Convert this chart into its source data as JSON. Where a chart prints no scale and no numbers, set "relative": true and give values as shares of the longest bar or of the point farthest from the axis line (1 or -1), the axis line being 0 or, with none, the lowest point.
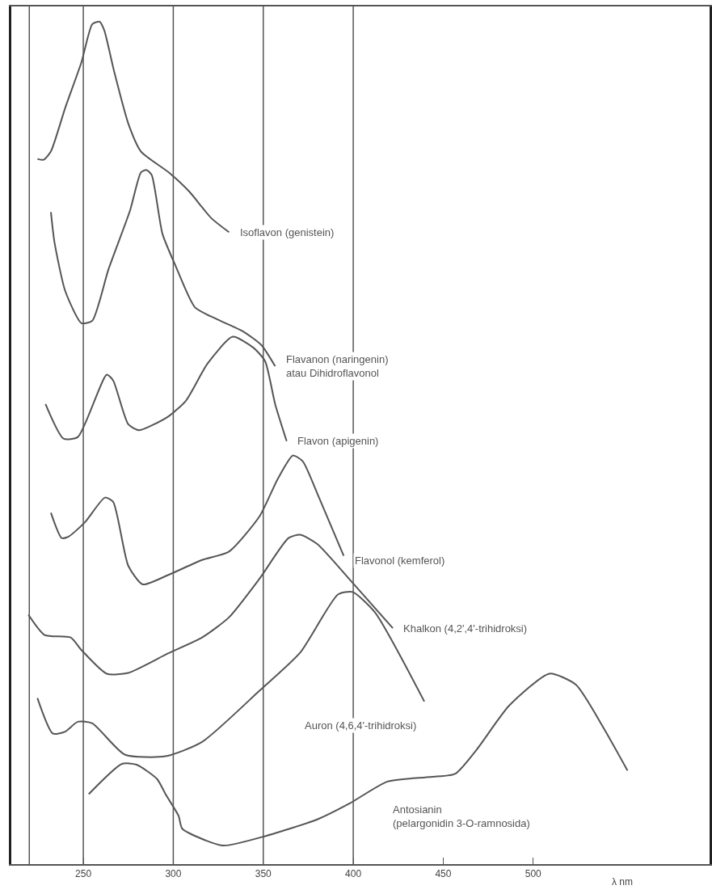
{
  "chart_data": {
    "type": "line",
    "relative": true,
    "xlabel": "λ nm",
    "xlim": [
      210,
      598
    ],
    "xticks": [
      250,
      300,
      350,
      400,
      450,
      500
    ],
    "grid": false,
    "legend": false,
    "marker": "none",
    "line_style": "solid",
    "ref_lines": [
      {
        "axis": "x",
        "value": 220,
        "color": "#555555"
      },
      {
        "axis": "x",
        "value": 250,
        "color": "#555555"
      },
      {
        "axis": "x",
        "value": 300,
        "color": "#555555"
      },
      {
        "axis": "x",
        "value": 350,
        "color": "#555555"
      },
      {
        "axis": "x",
        "value": 400,
        "color": "#555555"
      }
    ],
    "series": [
      {
        "name": "Isoflavon (genistein)",
        "color": "#555555",
        "x": [
          224.5,
          228,
          232,
          240,
          249,
          255,
          259,
          261.6,
          267,
          275,
          282,
          297.5,
          309,
          321,
          331
        ],
        "values": [
          0.837,
          0.836,
          0.846,
          0.898,
          0.952,
          0.997,
          1,
          0.99,
          0.942,
          0.879,
          0.846,
          0.821,
          0.798,
          0.767,
          0.75
        ]
      },
      {
        "name": "Flavanon (naringenin)\natau Dihidroflavonol",
        "color": "#555555",
        "x": [
          232,
          234,
          240,
          249,
          255,
          264,
          276,
          282,
          285,
          288,
          294,
          301.5,
          312,
          324,
          339,
          349,
          356.6
        ],
        "values": [
          0.774,
          0.738,
          0.68,
          0.642,
          0.645,
          0.706,
          0.776,
          0.821,
          0.824,
          0.818,
          0.748,
          0.709,
          0.661,
          0.647,
          0.632,
          0.616,
          0.591
        ]
      },
      {
        "name": "Flavon (apigenin)",
        "color": "#555555",
        "x": [
          229,
          239,
          247,
          263,
          266.6,
          275,
          281,
          297,
          307,
          319,
          333,
          344.5,
          351,
          356.6,
          363
        ],
        "values": [
          0.546,
          0.505,
          0.507,
          0.581,
          0.574,
          0.522,
          0.515,
          0.531,
          0.55,
          0.594,
          0.626,
          0.613,
          0.597,
          0.546,
          0.502
        ]
      },
      {
        "name": "Flavonol (kemferol)",
        "color": "#555555",
        "x": [
          232,
          238,
          242,
          251,
          262,
          266.6,
          275,
          283,
          297,
          316,
          331,
          348,
          358,
          366.5,
          372,
          380,
          394.7
        ],
        "values": [
          0.417,
          0.387,
          0.389,
          0.406,
          0.435,
          0.43,
          0.354,
          0.332,
          0.343,
          0.361,
          0.371,
          0.413,
          0.457,
          0.485,
          0.478,
          0.44,
          0.366
        ]
      },
      {
        "name": "Khalkon (4,2',4'-trihidroksi)",
        "color": "#555555",
        "x": [
          219.5,
          228.5,
          243,
          249,
          263,
          275,
          297,
          316,
          331,
          348,
          364,
          370.5,
          380,
          399.6,
          422
        ],
        "values": [
          0.296,
          0.272,
          0.269,
          0.254,
          0.226,
          0.227,
          0.25,
          0.269,
          0.293,
          0.339,
          0.387,
          0.391,
          0.38,
          0.334,
          0.28
        ]
      },
      {
        "name": "Auron (4,6,4'-trihidroksi)",
        "color": "#555555",
        "x": [
          224.5,
          233,
          239.7,
          247,
          255,
          273,
          295.7,
          316,
          348,
          370.5,
          391.5,
          399.6,
          412,
          439.5
        ],
        "values": [
          0.197,
          0.155,
          0.157,
          0.169,
          0.167,
          0.13,
          0.128,
          0.145,
          0.206,
          0.251,
          0.32,
          0.323,
          0.299,
          0.193
        ]
      },
      {
        "name": "Antosianin\n(pelargonidin 3-O-ramnosida)",
        "color": "#555555",
        "x": [
          253,
          271.5,
          279.6,
          291,
          295.7,
          303,
          305,
          327.5,
          349,
          380,
          398,
          419,
          440,
          456.5,
          468.6,
          486.6,
          509,
          523.7,
          539,
          552.4
        ],
        "values": [
          0.083,
          0.119,
          0.118,
          0.101,
          0.083,
          0.057,
          0.042,
          0.022,
          0.032,
          0.053,
          0.072,
          0.098,
          0.103,
          0.107,
          0.136,
          0.188,
          0.226,
          0.213,
          0.162,
          0.111
        ]
      }
    ]
  }
}
